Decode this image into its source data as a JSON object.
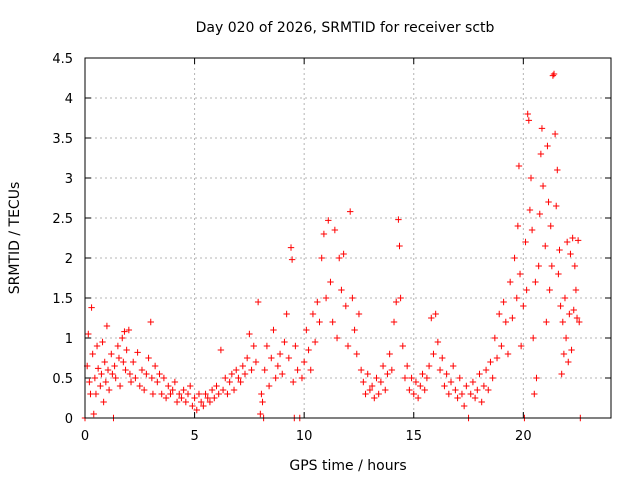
{
  "chart_data": {
    "type": "scatter",
    "title": "Day 020 of 2026, SRMTID for receiver sctb",
    "xlabel": "GPS time / hours",
    "ylabel": "SRMTID / TECUs",
    "xlim": [
      0,
      24
    ],
    "ylim": [
      0,
      4.5
    ],
    "xticks": [
      0,
      5,
      10,
      15,
      20
    ],
    "yticks": [
      0,
      0.5,
      1,
      1.5,
      2,
      2.5,
      3,
      3.5,
      4,
      4.5
    ],
    "grid": true,
    "marker": "+",
    "marker_color": "#ff0000",
    "series": [
      {
        "name": "SRMTID",
        "points": [
          [
            0.0,
            0.0
          ],
          [
            0.1,
            0.65
          ],
          [
            0.15,
            1.05
          ],
          [
            0.2,
            0.45
          ],
          [
            0.25,
            0.3
          ],
          [
            0.3,
            1.38
          ],
          [
            0.35,
            0.8
          ],
          [
            0.4,
            0.05
          ],
          [
            0.45,
            0.5
          ],
          [
            0.5,
            0.3
          ],
          [
            0.55,
            0.9
          ],
          [
            0.6,
            0.62
          ],
          [
            0.7,
            0.4
          ],
          [
            0.75,
            0.55
          ],
          [
            0.8,
            0.95
          ],
          [
            0.85,
            0.2
          ],
          [
            0.9,
            0.7
          ],
          [
            0.95,
            0.45
          ],
          [
            1.0,
            1.15
          ],
          [
            1.05,
            0.6
          ],
          [
            1.1,
            0.35
          ],
          [
            1.2,
            0.8
          ],
          [
            1.25,
            0.55
          ],
          [
            1.3,
            0.0
          ],
          [
            1.35,
            0.65
          ],
          [
            1.4,
            0.5
          ],
          [
            1.5,
            0.9
          ],
          [
            1.55,
            0.75
          ],
          [
            1.6,
            0.4
          ],
          [
            1.7,
            1.0
          ],
          [
            1.75,
            0.7
          ],
          [
            1.8,
            1.08
          ],
          [
            1.85,
            0.6
          ],
          [
            1.9,
            0.85
          ],
          [
            2.0,
            1.1
          ],
          [
            2.05,
            0.55
          ],
          [
            2.1,
            0.45
          ],
          [
            2.2,
            0.7
          ],
          [
            2.3,
            0.5
          ],
          [
            2.4,
            0.82
          ],
          [
            2.5,
            0.4
          ],
          [
            2.6,
            0.6
          ],
          [
            2.7,
            0.35
          ],
          [
            2.8,
            0.55
          ],
          [
            2.9,
            0.75
          ],
          [
            3.0,
            1.2
          ],
          [
            3.05,
            0.5
          ],
          [
            3.1,
            0.3
          ],
          [
            3.2,
            0.65
          ],
          [
            3.3,
            0.45
          ],
          [
            3.4,
            0.55
          ],
          [
            3.5,
            0.3
          ],
          [
            3.6,
            0.5
          ],
          [
            3.7,
            0.25
          ],
          [
            3.8,
            0.4
          ],
          [
            3.9,
            0.3
          ],
          [
            4.0,
            0.35
          ],
          [
            4.1,
            0.45
          ],
          [
            4.2,
            0.2
          ],
          [
            4.3,
            0.3
          ],
          [
            4.4,
            0.25
          ],
          [
            4.5,
            0.35
          ],
          [
            4.6,
            0.2
          ],
          [
            4.7,
            0.3
          ],
          [
            4.8,
            0.4
          ],
          [
            4.9,
            0.15
          ],
          [
            5.0,
            0.25
          ],
          [
            5.1,
            0.1
          ],
          [
            5.2,
            0.3
          ],
          [
            5.3,
            0.2
          ],
          [
            5.4,
            0.15
          ],
          [
            5.5,
            0.3
          ],
          [
            5.6,
            0.25
          ],
          [
            5.7,
            0.2
          ],
          [
            5.8,
            0.35
          ],
          [
            5.9,
            0.25
          ],
          [
            6.0,
            0.4
          ],
          [
            6.1,
            0.3
          ],
          [
            6.2,
            0.85
          ],
          [
            6.3,
            0.35
          ],
          [
            6.4,
            0.5
          ],
          [
            6.5,
            0.3
          ],
          [
            6.6,
            0.45
          ],
          [
            6.7,
            0.55
          ],
          [
            6.8,
            0.35
          ],
          [
            6.9,
            0.6
          ],
          [
            7.0,
            0.5
          ],
          [
            7.1,
            0.45
          ],
          [
            7.2,
            0.65
          ],
          [
            7.3,
            0.55
          ],
          [
            7.4,
            0.75
          ],
          [
            7.5,
            1.05
          ],
          [
            7.6,
            0.6
          ],
          [
            7.7,
            0.9
          ],
          [
            7.8,
            0.7
          ],
          [
            7.9,
            1.45
          ],
          [
            8.0,
            0.05
          ],
          [
            8.05,
            0.3
          ],
          [
            8.1,
            0.2
          ],
          [
            8.15,
            0.0
          ],
          [
            8.2,
            0.6
          ],
          [
            8.3,
            0.9
          ],
          [
            8.4,
            0.4
          ],
          [
            8.5,
            0.75
          ],
          [
            8.6,
            1.1
          ],
          [
            8.7,
            0.5
          ],
          [
            8.8,
            0.65
          ],
          [
            8.9,
            0.8
          ],
          [
            9.0,
            0.55
          ],
          [
            9.1,
            0.95
          ],
          [
            9.2,
            1.3
          ],
          [
            9.3,
            0.75
          ],
          [
            9.4,
            2.13
          ],
          [
            9.45,
            1.98
          ],
          [
            9.5,
            0.45
          ],
          [
            9.55,
            0.0
          ],
          [
            9.6,
            0.9
          ],
          [
            9.7,
            0.6
          ],
          [
            9.8,
            0.0
          ],
          [
            9.9,
            0.5
          ],
          [
            10.0,
            0.7
          ],
          [
            10.1,
            1.1
          ],
          [
            10.2,
            0.85
          ],
          [
            10.3,
            0.6
          ],
          [
            10.4,
            1.3
          ],
          [
            10.5,
            0.95
          ],
          [
            10.6,
            1.45
          ],
          [
            10.7,
            1.2
          ],
          [
            10.8,
            2.0
          ],
          [
            10.9,
            2.3
          ],
          [
            11.0,
            1.5
          ],
          [
            11.1,
            2.47
          ],
          [
            11.2,
            1.7
          ],
          [
            11.3,
            1.2
          ],
          [
            11.4,
            2.35
          ],
          [
            11.5,
            1.0
          ],
          [
            11.6,
            2.0
          ],
          [
            11.7,
            1.6
          ],
          [
            11.8,
            2.05
          ],
          [
            11.9,
            1.4
          ],
          [
            12.0,
            0.9
          ],
          [
            12.1,
            2.58
          ],
          [
            12.2,
            1.5
          ],
          [
            12.3,
            1.1
          ],
          [
            12.4,
            0.8
          ],
          [
            12.5,
            1.3
          ],
          [
            12.6,
            0.6
          ],
          [
            12.7,
            0.45
          ],
          [
            12.8,
            0.3
          ],
          [
            12.9,
            0.55
          ],
          [
            13.0,
            0.35
          ],
          [
            13.1,
            0.4
          ],
          [
            13.2,
            0.25
          ],
          [
            13.3,
            0.5
          ],
          [
            13.4,
            0.3
          ],
          [
            13.5,
            0.45
          ],
          [
            13.6,
            0.65
          ],
          [
            13.7,
            0.35
          ],
          [
            13.8,
            0.55
          ],
          [
            13.9,
            0.8
          ],
          [
            14.0,
            0.6
          ],
          [
            14.1,
            1.2
          ],
          [
            14.2,
            1.45
          ],
          [
            14.3,
            2.48
          ],
          [
            14.35,
            2.15
          ],
          [
            14.4,
            1.5
          ],
          [
            14.5,
            0.9
          ],
          [
            14.6,
            0.5
          ],
          [
            14.7,
            0.65
          ],
          [
            14.8,
            0.35
          ],
          [
            14.9,
            0.5
          ],
          [
            15.0,
            0.3
          ],
          [
            15.1,
            0.45
          ],
          [
            15.2,
            0.25
          ],
          [
            15.3,
            0.4
          ],
          [
            15.4,
            0.55
          ],
          [
            15.5,
            0.35
          ],
          [
            15.6,
            0.5
          ],
          [
            15.7,
            0.65
          ],
          [
            15.8,
            1.25
          ],
          [
            15.9,
            0.8
          ],
          [
            16.0,
            1.3
          ],
          [
            16.1,
            0.95
          ],
          [
            16.2,
            0.6
          ],
          [
            16.3,
            0.75
          ],
          [
            16.4,
            0.4
          ],
          [
            16.5,
            0.55
          ],
          [
            16.6,
            0.3
          ],
          [
            16.7,
            0.45
          ],
          [
            16.8,
            0.65
          ],
          [
            16.9,
            0.35
          ],
          [
            17.0,
            0.25
          ],
          [
            17.1,
            0.5
          ],
          [
            17.2,
            0.3
          ],
          [
            17.3,
            0.15
          ],
          [
            17.4,
            0.4
          ],
          [
            17.5,
            0.0
          ],
          [
            17.6,
            0.3
          ],
          [
            17.7,
            0.45
          ],
          [
            17.8,
            0.25
          ],
          [
            17.9,
            0.35
          ],
          [
            18.0,
            0.55
          ],
          [
            18.1,
            0.2
          ],
          [
            18.2,
            0.4
          ],
          [
            18.3,
            0.6
          ],
          [
            18.4,
            0.35
          ],
          [
            18.5,
            0.7
          ],
          [
            18.6,
            0.5
          ],
          [
            18.7,
            1.0
          ],
          [
            18.8,
            0.75
          ],
          [
            18.9,
            1.3
          ],
          [
            19.0,
            0.9
          ],
          [
            19.1,
            1.45
          ],
          [
            19.2,
            1.2
          ],
          [
            19.3,
            0.8
          ],
          [
            19.4,
            1.7
          ],
          [
            19.5,
            1.25
          ],
          [
            19.6,
            2.0
          ],
          [
            19.7,
            1.5
          ],
          [
            19.75,
            2.4
          ],
          [
            19.8,
            3.15
          ],
          [
            19.85,
            1.8
          ],
          [
            19.9,
            0.9
          ],
          [
            20.0,
            1.4
          ],
          [
            20.05,
            0.0
          ],
          [
            20.1,
            2.2
          ],
          [
            20.15,
            1.6
          ],
          [
            20.2,
            3.8
          ],
          [
            20.25,
            3.72
          ],
          [
            20.3,
            2.6
          ],
          [
            20.35,
            3.0
          ],
          [
            20.4,
            2.35
          ],
          [
            20.45,
            1.0
          ],
          [
            20.5,
            0.3
          ],
          [
            20.55,
            1.7
          ],
          [
            20.6,
            0.5
          ],
          [
            20.7,
            1.9
          ],
          [
            20.75,
            2.55
          ],
          [
            20.8,
            3.3
          ],
          [
            20.85,
            3.62
          ],
          [
            20.9,
            2.9
          ],
          [
            21.0,
            2.15
          ],
          [
            21.05,
            1.2
          ],
          [
            21.1,
            3.4
          ],
          [
            21.15,
            2.7
          ],
          [
            21.2,
            1.6
          ],
          [
            21.25,
            2.4
          ],
          [
            21.3,
            1.9
          ],
          [
            21.35,
            4.28
          ],
          [
            21.4,
            4.3
          ],
          [
            21.45,
            3.55
          ],
          [
            21.5,
            2.65
          ],
          [
            21.55,
            3.1
          ],
          [
            21.6,
            1.8
          ],
          [
            21.65,
            2.1
          ],
          [
            21.7,
            1.4
          ],
          [
            21.75,
            0.55
          ],
          [
            21.8,
            1.2
          ],
          [
            21.85,
            0.8
          ],
          [
            21.9,
            1.5
          ],
          [
            21.95,
            1.0
          ],
          [
            22.0,
            2.2
          ],
          [
            22.05,
            0.7
          ],
          [
            22.1,
            1.3
          ],
          [
            22.15,
            2.05
          ],
          [
            22.2,
            0.85
          ],
          [
            22.25,
            2.25
          ],
          [
            22.3,
            1.35
          ],
          [
            22.35,
            1.9
          ],
          [
            22.4,
            1.6
          ],
          [
            22.45,
            1.25
          ],
          [
            22.5,
            2.22
          ],
          [
            22.55,
            1.2
          ],
          [
            22.6,
            0.0
          ]
        ]
      }
    ]
  }
}
